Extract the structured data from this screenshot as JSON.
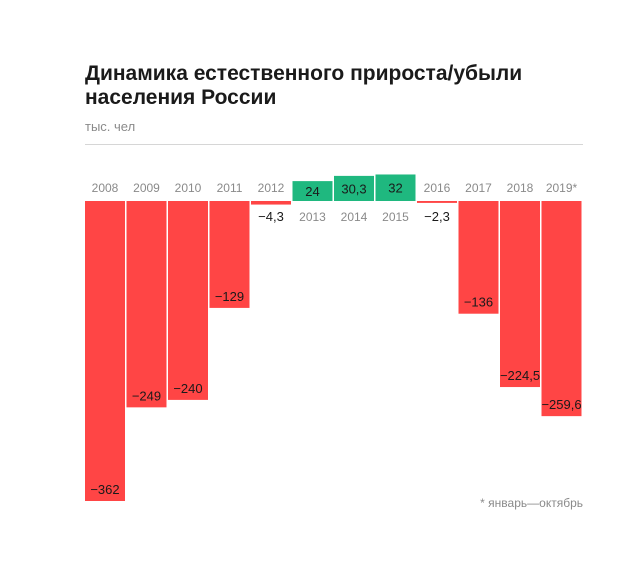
{
  "chart_data": {
    "type": "bar",
    "title": "Динамика естественного прироста/убыли населения России",
    "unit": "тыс. чел",
    "footnote": "* январь—октябрь",
    "categories": [
      "2008",
      "2009",
      "2010",
      "2011",
      "2012",
      "2013",
      "2014",
      "2015",
      "2016",
      "2017",
      "2018",
      "2019*"
    ],
    "values": [
      -362,
      -249,
      -240,
      -129,
      -4.3,
      24,
      30.3,
      32,
      -2.3,
      -136,
      -224.5,
      -259.6
    ],
    "value_labels": [
      "−362",
      "−249",
      "−240",
      "−129",
      "−4,3",
      "24",
      "30,3",
      "32",
      "−2,3",
      "−136",
      "−224,5",
      "−259,6"
    ],
    "colors": {
      "negative": "#ff4545",
      "positive": "#1fb87f"
    },
    "grid": false,
    "legend": "none"
  }
}
